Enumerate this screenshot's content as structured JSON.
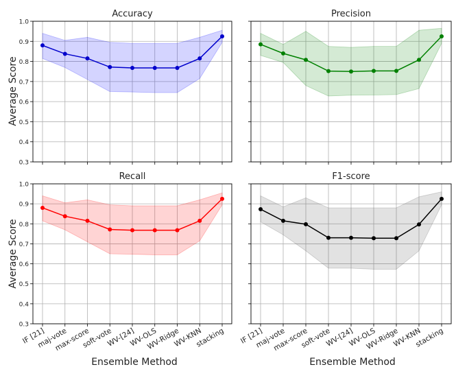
{
  "figure": {
    "shared_ylabel": "Average Score",
    "shared_xlabel": "Ensemble Method"
  },
  "chart_data": [
    {
      "type": "line",
      "title": "Accuracy",
      "color": "#0000cc",
      "band_color": "#0000ff",
      "categories": [
        "IF [21]",
        "maj-vote",
        "max-score",
        "soft-vote",
        "WV-[24]",
        "WV-OLS",
        "WV-Ridge",
        "WV-KNN",
        "stacking"
      ],
      "values": [
        0.88,
        0.838,
        0.815,
        0.772,
        0.768,
        0.768,
        0.768,
        0.815,
        0.925
      ],
      "band_upper": [
        0.94,
        0.905,
        0.92,
        0.895,
        0.89,
        0.89,
        0.89,
        0.92,
        0.955
      ],
      "band_lower": [
        0.815,
        0.77,
        0.71,
        0.65,
        0.648,
        0.645,
        0.645,
        0.715,
        0.895
      ],
      "ylim": [
        0.3,
        1.0
      ],
      "yticks": [
        "0.3",
        "0.4",
        "0.5",
        "0.6",
        "0.7",
        "0.8",
        "0.9",
        "1.0"
      ],
      "grid": true
    },
    {
      "type": "line",
      "title": "Precision",
      "color": "#008000",
      "band_color": "#008000",
      "categories": [
        "IF [21]",
        "maj-vote",
        "max-score",
        "soft-vote",
        "WV-[24]",
        "WV-OLS",
        "WV-Ridge",
        "WV-KNN",
        "stacking"
      ],
      "values": [
        0.885,
        0.84,
        0.808,
        0.752,
        0.75,
        0.753,
        0.753,
        0.808,
        0.925
      ],
      "band_upper": [
        0.94,
        0.885,
        0.95,
        0.875,
        0.87,
        0.875,
        0.875,
        0.955,
        0.965
      ],
      "band_lower": [
        0.83,
        0.795,
        0.68,
        0.628,
        0.632,
        0.633,
        0.635,
        0.665,
        0.89
      ],
      "ylim": [
        0.3,
        1.0
      ],
      "yticks": [
        "0.3",
        "0.4",
        "0.5",
        "0.6",
        "0.7",
        "0.8",
        "0.9",
        "1.0"
      ],
      "grid": true
    },
    {
      "type": "line",
      "title": "Recall",
      "color": "#ff0000",
      "band_color": "#ff0000",
      "categories": [
        "IF [21]",
        "maj-vote",
        "max-score",
        "soft-vote",
        "WV-[24]",
        "WV-OLS",
        "WV-Ridge",
        "WV-KNN",
        "stacking"
      ],
      "values": [
        0.88,
        0.838,
        0.815,
        0.772,
        0.768,
        0.768,
        0.768,
        0.815,
        0.925
      ],
      "band_upper": [
        0.94,
        0.905,
        0.92,
        0.895,
        0.89,
        0.89,
        0.89,
        0.92,
        0.955
      ],
      "band_lower": [
        0.815,
        0.77,
        0.71,
        0.65,
        0.648,
        0.645,
        0.645,
        0.715,
        0.895
      ],
      "ylim": [
        0.3,
        1.0
      ],
      "yticks": [
        "0.3",
        "0.4",
        "0.5",
        "0.6",
        "0.7",
        "0.8",
        "0.9",
        "1.0"
      ],
      "grid": true
    },
    {
      "type": "line",
      "title": "F1-score",
      "color": "#000000",
      "band_color": "#555555",
      "categories": [
        "IF [21]",
        "maj-vote",
        "max-score",
        "soft-vote",
        "WV-[24]",
        "WV-OLS",
        "WV-Ridge",
        "WV-KNN",
        "stacking"
      ],
      "values": [
        0.873,
        0.815,
        0.798,
        0.73,
        0.73,
        0.728,
        0.728,
        0.797,
        0.925
      ],
      "band_upper": [
        0.94,
        0.885,
        0.93,
        0.88,
        0.88,
        0.88,
        0.88,
        0.935,
        0.96
      ],
      "band_lower": [
        0.81,
        0.745,
        0.665,
        0.578,
        0.578,
        0.573,
        0.573,
        0.665,
        0.895
      ],
      "ylim": [
        0.3,
        1.0
      ],
      "yticks": [
        "0.3",
        "0.4",
        "0.5",
        "0.6",
        "0.7",
        "0.8",
        "0.9",
        "1.0"
      ],
      "grid": true
    }
  ]
}
